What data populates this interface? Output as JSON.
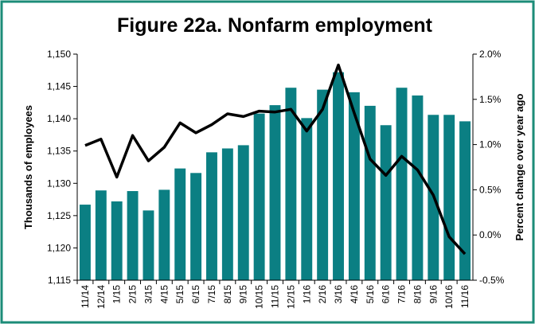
{
  "chart_data": {
    "type": "bar-line",
    "title": "Figure 22a. Nonfarm employment",
    "y_label": "Thousands of employees",
    "y2_label": "Percent change over year ago",
    "categories": [
      "11/14",
      "12/14",
      "1/15",
      "2/15",
      "3/15",
      "4/15",
      "5/15",
      "6/15",
      "7/15",
      "8/15",
      "9/15",
      "10/15",
      "11/15",
      "12/15",
      "1/16",
      "2/16",
      "3/16",
      "4/16",
      "5/16",
      "6/16",
      "7/16",
      "8/16",
      "9/16",
      "10/16",
      "11/16"
    ],
    "series": [
      {
        "type": "bar",
        "color": "#0b7f83",
        "values": [
          1126.7,
          1128.9,
          1127.2,
          1128.8,
          1125.8,
          1129.0,
          1132.3,
          1131.6,
          1134.8,
          1135.4,
          1135.9,
          1140.8,
          1142.1,
          1144.8,
          1140.1,
          1144.5,
          1147.2,
          1144.1,
          1142.0,
          1139.0,
          1144.8,
          1143.6,
          1140.6,
          1140.6,
          1139.6
        ]
      },
      {
        "type": "line",
        "axis": "y2",
        "color": "#000000",
        "values": [
          0.99,
          1.06,
          0.64,
          1.1,
          0.82,
          0.97,
          1.24,
          1.13,
          1.22,
          1.34,
          1.31,
          1.37,
          1.36,
          1.39,
          1.15,
          1.39,
          1.88,
          1.35,
          0.84,
          0.66,
          0.87,
          0.72,
          0.44,
          -0.02,
          -0.21
        ]
      }
    ],
    "ylim": [
      1115,
      1150
    ],
    "yticks": [
      {
        "value": 1115,
        "label": "1,115"
      },
      {
        "value": 1120,
        "label": "1,120"
      },
      {
        "value": 1125,
        "label": "1,125"
      },
      {
        "value": 1130,
        "label": "1,130"
      },
      {
        "value": 1135,
        "label": "1,135"
      },
      {
        "value": 1140,
        "label": "1,140"
      },
      {
        "value": 1145,
        "label": "1,145"
      },
      {
        "value": 1150,
        "label": "1,150"
      }
    ],
    "y2lim": [
      -0.5,
      2.0
    ],
    "y2ticks": [
      {
        "value": -0.5,
        "label": "-0.5%"
      },
      {
        "value": 0,
        "label": "0.0%"
      },
      {
        "value": 0.5,
        "label": "0.5%"
      },
      {
        "value": 1.0,
        "label": "1.0%"
      },
      {
        "value": 1.5,
        "label": "1.5%"
      },
      {
        "value": 2.0,
        "label": "2.0%"
      }
    ],
    "grid": false
  }
}
